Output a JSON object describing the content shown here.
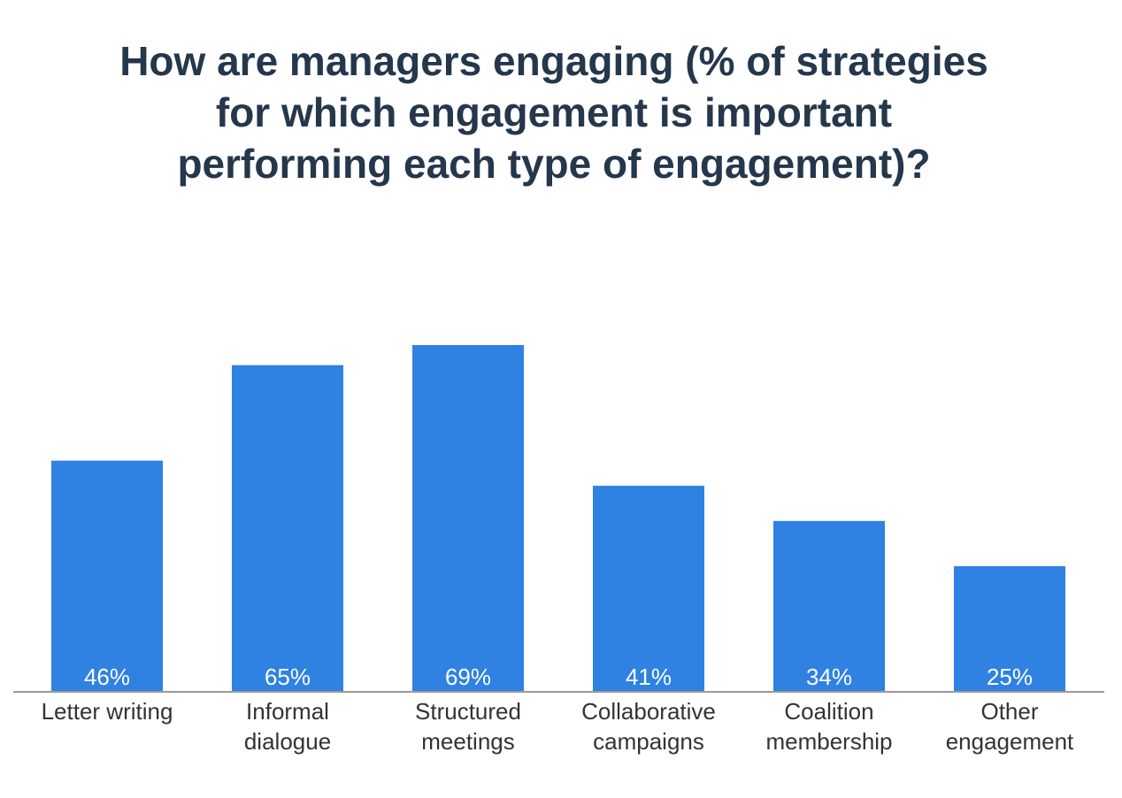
{
  "chart_data": {
    "type": "bar",
    "title_lines": [
      "How are managers engaging (% of strategies",
      "for which engagement is important",
      "performing each type of engagement)?"
    ],
    "categories": [
      [
        "Letter writing"
      ],
      [
        "Informal",
        "dialogue"
      ],
      [
        "Structured",
        "meetings"
      ],
      [
        "Collaborative",
        "campaigns"
      ],
      [
        "Coalition",
        "membership"
      ],
      [
        "Other",
        "engagement"
      ]
    ],
    "values": [
      46,
      65,
      69,
      41,
      34,
      25
    ],
    "value_labels": [
      "46%",
      "65%",
      "69%",
      "41%",
      "34%",
      "25%"
    ],
    "xlabel": "",
    "ylabel": "",
    "ylim": [
      0,
      100
    ],
    "grid": false,
    "legend": "none",
    "bar_color": "#2f81e2"
  }
}
